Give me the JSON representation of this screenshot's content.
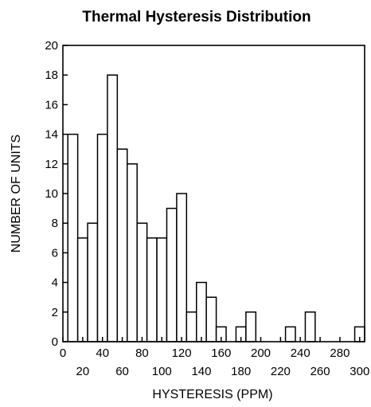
{
  "chart_data": {
    "type": "bar",
    "title": "Thermal Hysteresis Distribution",
    "xlabel": "HYSTERESIS (PPM)",
    "ylabel": "NUMBER OF UNITS",
    "bin_width": 10,
    "x": [
      10,
      20,
      30,
      40,
      50,
      60,
      70,
      80,
      90,
      100,
      110,
      120,
      130,
      140,
      150,
      160,
      170,
      180,
      190,
      200,
      210,
      220,
      230,
      240,
      250,
      260,
      270,
      280,
      290,
      300
    ],
    "values": [
      14,
      7,
      8,
      14,
      18,
      13,
      12,
      8,
      7,
      7,
      9,
      10,
      2,
      4,
      3,
      1,
      0,
      1,
      2,
      0,
      0,
      0,
      1,
      0,
      2,
      0,
      0,
      0,
      0,
      1
    ],
    "xlim": [
      0,
      305
    ],
    "ylim": [
      0,
      20
    ],
    "x_ticks": [
      0,
      20,
      40,
      60,
      80,
      100,
      120,
      140,
      160,
      180,
      200,
      220,
      240,
      260,
      280,
      300
    ],
    "x_tick_labels_upper": [
      "0",
      "40",
      "80",
      "120",
      "160",
      "200",
      "240",
      "280"
    ],
    "x_tick_labels_lower": [
      "20",
      "60",
      "100",
      "140",
      "180",
      "220",
      "260",
      "300"
    ],
    "y_ticks": [
      0,
      2,
      4,
      6,
      8,
      10,
      12,
      14,
      16,
      18,
      20
    ],
    "y_tick_labels": [
      "0",
      "2",
      "4",
      "6",
      "8",
      "10",
      "12",
      "14",
      "16",
      "18",
      "20"
    ],
    "grid": false,
    "legend": "none"
  }
}
